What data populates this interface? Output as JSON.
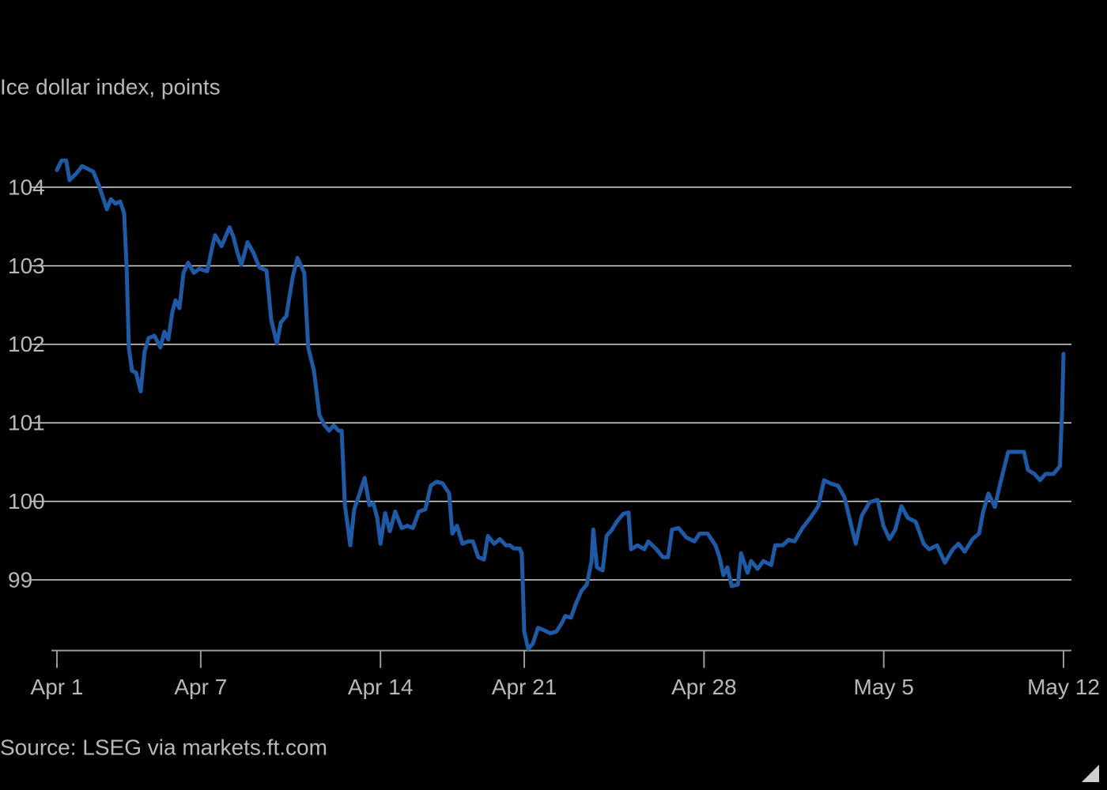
{
  "chart_data": {
    "type": "line",
    "title": "Ice dollar index, points",
    "source": "Source: LSEG via markets.ft.com",
    "color": "#1f5aa6",
    "grid": true,
    "x": [
      0,
      0.13,
      0.26,
      0.35,
      0.53,
      0.7,
      1.01,
      1.17,
      1.28,
      1.39,
      1.5,
      1.63,
      1.76,
      1.87,
      1.94,
      2.0,
      2.09,
      2.2,
      2.33,
      2.44,
      2.55,
      2.71,
      2.88,
      2.99,
      3.1,
      3.21,
      3.3,
      3.41,
      3.52,
      3.65,
      3.81,
      3.96,
      4.18,
      4.31,
      4.4,
      4.58,
      4.8,
      4.91,
      5.02,
      5.13,
      5.3,
      5.46,
      5.63,
      5.83,
      5.96,
      6.12,
      6.23,
      6.38,
      6.56,
      6.69,
      6.88,
      6.99,
      7.15,
      7.3,
      7.44,
      7.57,
      7.7,
      7.83,
      7.92,
      8.01,
      8.16,
      8.27,
      8.42,
      8.56,
      8.69,
      8.8,
      8.91,
      9.0,
      9.13,
      9.26,
      9.41,
      9.59,
      9.75,
      9.9,
      10.07,
      10.25,
      10.4,
      10.56,
      10.73,
      10.91,
      11.0,
      11.13,
      11.28,
      11.44,
      11.57,
      11.72,
      11.88,
      11.99,
      12.16,
      12.32,
      12.49,
      12.6,
      12.71,
      12.87,
      12.93,
      13.0,
      13.11,
      13.24,
      13.38,
      13.55,
      13.72,
      13.89,
      14.03,
      14.14,
      14.3,
      14.43,
      14.59,
      14.74,
      14.87,
      14.92,
      15.02,
      15.18,
      15.29,
      15.44,
      15.57,
      15.75,
      15.9,
      15.97,
      16.15,
      16.34,
      16.45,
      16.68,
      16.85,
      17.0,
      17.11,
      17.29,
      17.51,
      17.73,
      17.88,
      18.1,
      18.32,
      18.43,
      18.54,
      18.65,
      18.77,
      18.94,
      19.03,
      19.21,
      19.31,
      19.49,
      19.65,
      19.87,
      19.98,
      20.19,
      20.35,
      20.52,
      20.74,
      20.96,
      21.18,
      21.34,
      21.51,
      21.73,
      21.91,
      22.07,
      22.22,
      22.39,
      22.61,
      22.83,
      22.99,
      23.16,
      23.32,
      23.49,
      23.67,
      23.89,
      24.11,
      24.26,
      24.48,
      24.7,
      24.92,
      25.08,
      25.25,
      25.47,
      25.65,
      25.76,
      25.91,
      26.09,
      26.24,
      26.46,
      26.68,
      26.9,
      27.01,
      27.19,
      27.35,
      27.5,
      27.72,
      27.9,
      27.96,
      28.0
    ],
    "values": [
      104.22,
      104.34,
      104.34,
      104.09,
      104.17,
      104.27,
      104.2,
      104.02,
      103.87,
      103.72,
      103.85,
      103.79,
      103.82,
      103.67,
      102.96,
      101.96,
      101.66,
      101.64,
      101.4,
      101.91,
      102.08,
      102.11,
      101.96,
      102.16,
      102.06,
      102.41,
      102.56,
      102.46,
      102.91,
      103.04,
      102.91,
      102.96,
      102.93,
      103.22,
      103.39,
      103.25,
      103.49,
      103.37,
      103.17,
      103.01,
      103.3,
      103.17,
      102.98,
      102.94,
      102.31,
      102.01,
      102.28,
      102.36,
      102.86,
      103.1,
      102.91,
      101.96,
      101.66,
      101.1,
      100.97,
      100.9,
      100.97,
      100.9,
      100.9,
      99.95,
      99.44,
      99.9,
      100.1,
      100.3,
      99.95,
      99.98,
      99.79,
      99.46,
      99.85,
      99.62,
      99.87,
      99.66,
      99.69,
      99.66,
      99.87,
      99.9,
      100.2,
      100.25,
      100.23,
      100.1,
      99.59,
      99.69,
      99.46,
      99.49,
      99.49,
      99.29,
      99.26,
      99.56,
      99.46,
      99.52,
      99.44,
      99.44,
      99.4,
      99.4,
      99.34,
      98.34,
      98.12,
      98.19,
      98.39,
      98.36,
      98.32,
      98.34,
      98.44,
      98.54,
      98.52,
      98.69,
      98.86,
      98.94,
      99.24,
      99.64,
      99.16,
      99.12,
      99.56,
      99.64,
      99.74,
      99.84,
      99.86,
      99.39,
      99.44,
      99.39,
      99.49,
      99.39,
      99.29,
      99.29,
      99.64,
      99.66,
      99.54,
      99.49,
      99.59,
      99.59,
      99.44,
      99.29,
      99.06,
      99.16,
      98.92,
      98.94,
      99.34,
      99.09,
      99.24,
      99.14,
      99.24,
      99.19,
      99.44,
      99.44,
      99.51,
      99.49,
      99.66,
      99.79,
      99.94,
      100.27,
      100.23,
      100.2,
      100.05,
      99.74,
      99.46,
      99.82,
      99.99,
      100.02,
      99.69,
      99.52,
      99.64,
      99.94,
      99.79,
      99.74,
      99.46,
      99.39,
      99.44,
      99.22,
      99.39,
      99.46,
      99.36,
      99.52,
      99.59,
      99.86,
      100.1,
      99.93,
      100.23,
      100.63,
      100.63,
      100.63,
      100.4,
      100.35,
      100.27,
      100.35,
      100.35,
      100.45,
      101.15,
      101.88
    ],
    "xlim": [
      0,
      28
    ],
    "xticks": [
      {
        "value": 0,
        "label": "Apr 1"
      },
      {
        "value": 4,
        "label": "Apr 7"
      },
      {
        "value": 9,
        "label": "Apr 14"
      },
      {
        "value": 13,
        "label": "Apr 21"
      },
      {
        "value": 18,
        "label": "Apr 28"
      },
      {
        "value": 23,
        "label": "May 5"
      },
      {
        "value": 28,
        "label": "May 12"
      }
    ],
    "ylim": [
      98.1,
      104.6
    ],
    "yticks": [
      99,
      100,
      101,
      102,
      103,
      104
    ]
  }
}
